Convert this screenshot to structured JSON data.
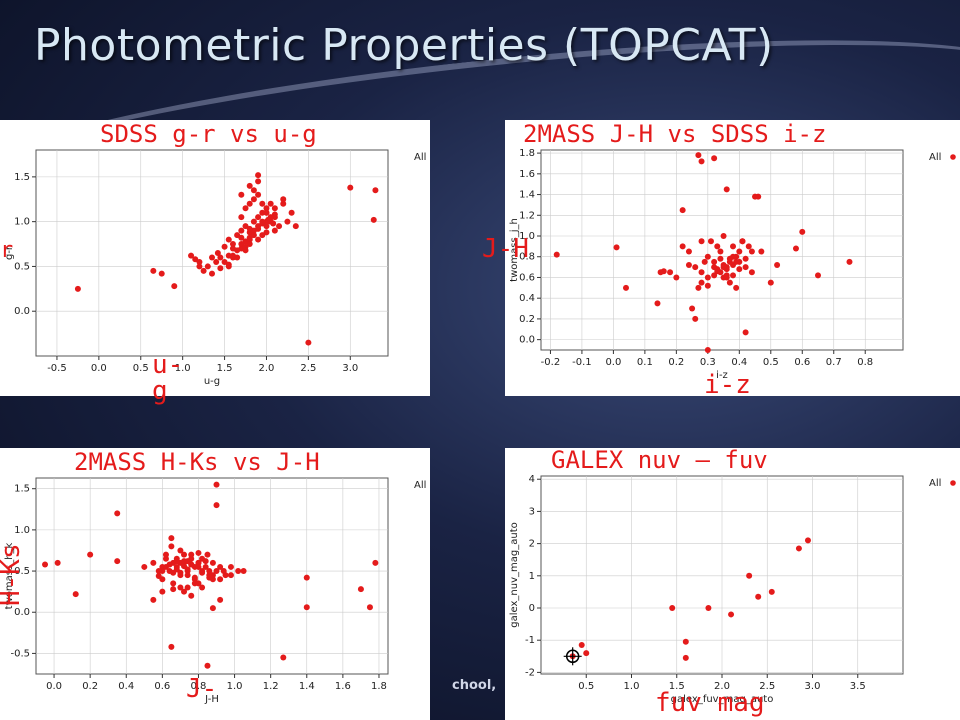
{
  "slide": {
    "title": "Photometric Properties (TOPCAT)",
    "footer_text": "chool,"
  },
  "colors": {
    "point": "#e41b1b",
    "label_red": "#e41b1b",
    "axis": "#000000",
    "grid": "#cccccc"
  },
  "chart_data": [
    {
      "type": "scatter",
      "title": "SDSS g-r vs u-g",
      "xlabel": "u-g",
      "ylabel": "g-r",
      "xlim": [
        -0.75,
        3.45
      ],
      "ylim": [
        -0.5,
        1.8
      ],
      "xticks": [
        -0.5,
        0.0,
        0.5,
        1.0,
        1.5,
        2.0,
        2.5,
        3.0
      ],
      "yticks": [
        0.0,
        0.5,
        1.0,
        1.5
      ],
      "legend": {
        "label": "All",
        "position": "top-right"
      },
      "overlay_labels": {
        "x": "u-\ng",
        "y": "g-\nr"
      },
      "series": [
        {
          "name": "All",
          "x": [
            -0.25,
            0.65,
            0.75,
            0.9,
            1.35,
            1.42,
            1.5,
            1.55,
            1.6,
            1.65,
            1.7,
            1.75,
            1.8,
            1.85,
            1.9,
            1.95,
            2.0,
            2.05,
            2.1,
            2.15,
            1.5,
            1.55,
            1.6,
            1.7,
            1.75,
            1.8,
            1.85,
            1.9,
            1.95,
            2.0,
            2.05,
            2.1,
            1.6,
            1.65,
            1.7,
            1.75,
            1.8,
            1.85,
            1.9,
            1.95,
            2.0,
            2.05,
            2.1,
            2.2,
            1.3,
            1.4,
            1.45,
            1.55,
            1.65,
            1.7,
            1.8,
            1.9,
            2.0,
            2.1,
            2.2,
            1.85,
            1.9,
            1.95,
            2.0,
            2.05,
            1.7,
            1.75,
            1.8,
            1.85,
            1.9,
            2.25,
            2.3,
            2.35,
            1.2,
            1.25,
            1.35,
            1.45,
            1.55,
            1.6,
            1.75,
            1.8,
            2.0,
            2.5,
            3.0,
            3.3,
            3.28,
            1.1,
            1.15,
            1.2,
            1.95,
            2.02,
            2.08,
            1.9,
            1.8,
            1.7
          ],
          "y": [
            0.25,
            0.45,
            0.42,
            0.28,
            0.6,
            0.65,
            0.72,
            0.8,
            0.75,
            0.85,
            0.9,
            0.95,
            0.88,
            1.0,
            1.05,
            0.98,
            1.1,
            1.0,
            1.05,
            0.95,
            0.55,
            0.62,
            0.7,
            0.7,
            0.78,
            0.82,
            0.9,
            0.92,
            0.85,
            0.95,
            1.0,
            0.9,
            0.6,
            0.68,
            0.75,
            0.72,
            0.8,
            0.85,
            0.95,
            1.1,
            1.15,
            1.2,
            1.08,
            1.2,
            0.5,
            0.55,
            0.6,
            0.5,
            0.6,
            0.82,
            0.75,
            0.8,
            1.0,
            1.15,
            1.25,
            1.25,
            1.3,
            1.2,
            1.1,
            1.05,
            1.05,
            1.15,
            1.2,
            1.35,
            1.45,
            1.0,
            1.1,
            0.95,
            0.5,
            0.45,
            0.42,
            0.48,
            0.52,
            0.62,
            0.68,
            0.92,
            0.88,
            -0.35,
            1.38,
            1.35,
            1.02,
            0.62,
            0.58,
            0.55,
            1.0,
            1.02,
            0.98,
            1.52,
            1.4,
            1.3
          ]
        }
      ]
    },
    {
      "type": "scatter",
      "title": "2MASS J-H vs SDSS i-z",
      "xlabel": "i-z",
      "ylabel": "twomass_j_h",
      "xlim": [
        -0.23,
        0.92
      ],
      "ylim": [
        -0.1,
        1.83
      ],
      "xticks": [
        -0.2,
        -0.1,
        0.0,
        0.1,
        0.2,
        0.3,
        0.4,
        0.5,
        0.6,
        0.7,
        0.8
      ],
      "yticks": [
        0.0,
        0.2,
        0.4,
        0.6,
        0.8,
        1.0,
        1.2,
        1.4,
        1.6,
        1.8
      ],
      "legend": {
        "label": "All",
        "position": "top-right"
      },
      "overlay_labels": {
        "x": "i-z",
        "y": "J-\nH"
      },
      "series": [
        {
          "name": "All",
          "x": [
            -0.18,
            0.01,
            0.04,
            0.14,
            0.16,
            0.18,
            0.2,
            0.22,
            0.24,
            0.26,
            0.28,
            0.3,
            0.32,
            0.34,
            0.36,
            0.38,
            0.4,
            0.42,
            0.3,
            0.32,
            0.34,
            0.36,
            0.38,
            0.4,
            0.42,
            0.44,
            0.28,
            0.3,
            0.32,
            0.34,
            0.36,
            0.38,
            0.4,
            0.31,
            0.33,
            0.35,
            0.37,
            0.39,
            0.41,
            0.43,
            0.29,
            0.35,
            0.37,
            0.39,
            0.33,
            0.35,
            0.37,
            0.5,
            0.52,
            0.58,
            0.6,
            0.65,
            0.75,
            0.15,
            0.22,
            0.27,
            0.28,
            0.32,
            0.36,
            0.45,
            0.25,
            0.42,
            0.26,
            0.27,
            0.35,
            0.24,
            0.36,
            0.41,
            0.47,
            0.3,
            0.28,
            0.46,
            0.38,
            0.44,
            0.33,
            0.39
          ],
          "y": [
            0.82,
            0.89,
            0.5,
            0.35,
            0.66,
            0.65,
            0.6,
            1.25,
            0.72,
            0.7,
            0.65,
            0.8,
            0.75,
            0.85,
            0.7,
            0.8,
            0.75,
            0.7,
            0.6,
            0.62,
            0.65,
            0.68,
            0.72,
            0.68,
            0.78,
            0.65,
            0.55,
            0.52,
            0.7,
            0.78,
            0.6,
            0.62,
            0.85,
            0.95,
            0.9,
            0.72,
            0.75,
            0.8,
            0.95,
            0.9,
            0.75,
            0.6,
            0.55,
            0.5,
            0.66,
            0.7,
            0.78,
            0.55,
            0.72,
            0.88,
            1.04,
            0.62,
            0.75,
            0.65,
            0.9,
            1.78,
            1.72,
            1.75,
            1.45,
            1.38,
            0.3,
            0.07,
            0.2,
            0.5,
            1.0,
            0.85,
            0.62,
            0.95,
            0.85,
            -0.1,
            0.95,
            1.38,
            0.9,
            0.85,
            0.68,
            0.75
          ]
        }
      ]
    },
    {
      "type": "scatter",
      "title": "2MASS H-Ks vs J-H",
      "xlabel": "J-\nH",
      "ylabel": "twomass_h_k",
      "xlim": [
        -0.1,
        1.85
      ],
      "ylim": [
        -0.75,
        1.63
      ],
      "xticks": [
        0.0,
        0.2,
        0.4,
        0.6,
        0.8,
        1.0,
        1.2,
        1.4,
        1.6,
        1.8
      ],
      "yticks": [
        -0.5,
        0.0,
        0.5,
        1.0,
        1.5
      ],
      "legend": {
        "label": "All",
        "position": "top-right"
      },
      "overlay_labels": {
        "x": "J-\nH",
        "y": "H-Ks"
      },
      "series": [
        {
          "name": "All",
          "x": [
            -0.05,
            0.02,
            0.12,
            0.2,
            0.35,
            0.35,
            0.5,
            0.55,
            0.58,
            0.6,
            0.62,
            0.64,
            0.66,
            0.68,
            0.7,
            0.72,
            0.74,
            0.76,
            0.78,
            0.8,
            0.82,
            0.84,
            0.86,
            0.88,
            0.9,
            0.92,
            0.95,
            0.98,
            1.02,
            1.05,
            0.6,
            0.62,
            0.65,
            0.68,
            0.7,
            0.72,
            0.74,
            0.76,
            0.78,
            0.8,
            0.82,
            0.85,
            0.88,
            0.66,
            0.7,
            0.74,
            0.78,
            0.82,
            0.86,
            0.64,
            0.68,
            0.72,
            0.76,
            0.8,
            0.84,
            0.88,
            0.92,
            0.7,
            0.74,
            0.78,
            0.82,
            0.86,
            0.72,
            0.76,
            0.8,
            0.55,
            0.6,
            0.65,
            0.9,
            0.9,
            0.92,
            0.88,
            0.65,
            0.85,
            1.27,
            1.4,
            1.4,
            1.7,
            1.75,
            1.78,
            0.72,
            0.76,
            0.8,
            0.62,
            0.68,
            0.74,
            0.66,
            0.7,
            0.6,
            0.58,
            0.66,
            0.94,
            0.98
          ],
          "y": [
            0.58,
            0.6,
            0.22,
            0.7,
            1.2,
            0.62,
            0.55,
            0.6,
            0.5,
            0.55,
            0.65,
            0.5,
            0.6,
            0.55,
            0.6,
            0.7,
            0.5,
            0.65,
            0.55,
            0.6,
            0.5,
            0.55,
            0.45,
            0.6,
            0.5,
            0.55,
            0.45,
            0.55,
            0.5,
            0.5,
            0.4,
            0.7,
            0.8,
            0.65,
            0.75,
            0.6,
            0.45,
            0.7,
            0.4,
            0.72,
            0.65,
            0.7,
            0.4,
            0.35,
            0.3,
            0.3,
            0.35,
            0.3,
            0.42,
            0.58,
            0.62,
            0.56,
            0.58,
            0.6,
            0.62,
            0.45,
            0.4,
            0.48,
            0.52,
            0.42,
            0.48,
            0.5,
            0.25,
            0.2,
            0.35,
            0.15,
            0.25,
            0.9,
            1.55,
            1.3,
            0.15,
            0.05,
            -0.42,
            -0.65,
            -0.55,
            0.42,
            0.06,
            0.28,
            0.06,
            0.6,
            0.62,
            0.58,
            0.55,
            0.55,
            0.52,
            0.62,
            0.48,
            0.45,
            0.5,
            0.44,
            0.28,
            0.5,
            0.45
          ],
          "highlight": []
        }
      ]
    },
    {
      "type": "scatter",
      "title": "GALEX nuv – fuv",
      "xlabel": "galex_fuv_mag_auto",
      "ylabel": "galex_nuv_mag_auto",
      "xlim": [
        0.0,
        4.0
      ],
      "ylim": [
        -2.05,
        4.1
      ],
      "xticks": [
        0.5,
        1.0,
        1.5,
        2.0,
        2.5,
        3.0,
        3.5
      ],
      "yticks": [
        -2,
        -1,
        0,
        1,
        2,
        3,
        4
      ],
      "legend": {
        "label": "All",
        "position": "top-right"
      },
      "overlay_labels": {
        "x": "fuv mag"
      },
      "series": [
        {
          "name": "All",
          "x": [
            0.35,
            0.45,
            0.5,
            1.45,
            1.6,
            1.6,
            1.85,
            2.1,
            2.3,
            2.4,
            2.55,
            2.85,
            2.95
          ],
          "y": [
            -1.5,
            -1.15,
            -1.4,
            0.0,
            -1.05,
            -1.55,
            0.0,
            -0.2,
            1.0,
            0.35,
            0.5,
            1.85,
            2.1
          ]
        }
      ],
      "highlight_point": {
        "x": 0.35,
        "y": -1.5
      }
    }
  ]
}
